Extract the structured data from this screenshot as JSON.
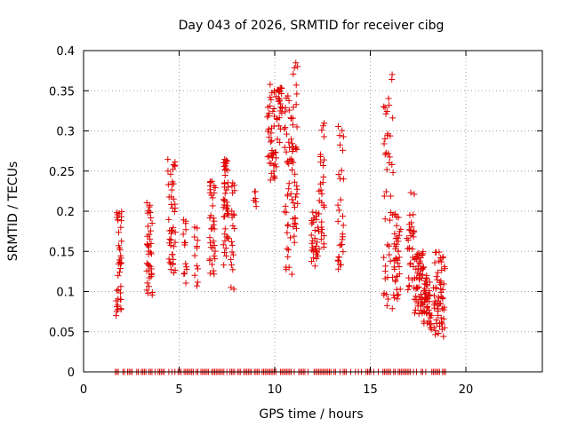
{
  "chart_data": {
    "type": "scatter",
    "title": "Day 043 of 2026, SRMTID for receiver cibg",
    "xlabel": "GPS time / hours",
    "ylabel": "SRMTID / TECUs",
    "xlim": [
      0,
      24
    ],
    "ylim": [
      0,
      0.4
    ],
    "x_ticks": [
      0,
      5,
      10,
      15,
      20
    ],
    "x_tick_labels": [
      "0",
      "5",
      "10",
      "15",
      "20"
    ],
    "y_ticks": [
      0,
      0.05,
      0.1,
      0.15,
      0.2,
      0.25,
      0.3,
      0.35,
      0.4
    ],
    "y_tick_labels": [
      "0",
      "0.05",
      "0.1",
      "0.15",
      "0.2",
      "0.25",
      "0.3",
      "0.35",
      "0.4"
    ],
    "grid": true,
    "marker": "+",
    "color": "#e00000",
    "clusters": [
      {
        "x_range": [
          1.7,
          2.0
        ],
        "y_range": [
          0.07,
          0.2
        ],
        "n": 40
      },
      {
        "x_range": [
          3.3,
          3.6
        ],
        "y_range": [
          0.095,
          0.215
        ],
        "n": 40
      },
      {
        "x_range": [
          4.4,
          4.8
        ],
        "y_range": [
          0.12,
          0.265
        ],
        "n": 45
      },
      {
        "x_range": [
          5.2,
          5.4
        ],
        "y_range": [
          0.11,
          0.19
        ],
        "n": 14
      },
      {
        "x_range": [
          5.8,
          6.0
        ],
        "y_range": [
          0.105,
          0.185
        ],
        "n": 12
      },
      {
        "x_range": [
          6.6,
          6.9
        ],
        "y_range": [
          0.11,
          0.24
        ],
        "n": 35
      },
      {
        "x_range": [
          7.3,
          7.6
        ],
        "y_range": [
          0.13,
          0.265
        ],
        "n": 45
      },
      {
        "x_range": [
          7.7,
          7.9
        ],
        "y_range": [
          0.09,
          0.24
        ],
        "n": 20
      },
      {
        "x_range": [
          8.9,
          9.1
        ],
        "y_range": [
          0.19,
          0.225
        ],
        "n": 6
      },
      {
        "x_range": [
          9.6,
          10.1
        ],
        "y_range": [
          0.23,
          0.36
        ],
        "n": 45
      },
      {
        "x_range": [
          10.1,
          10.4
        ],
        "y_range": [
          0.28,
          0.37
        ],
        "n": 25
      },
      {
        "x_range": [
          10.5,
          10.9
        ],
        "y_range": [
          0.12,
          0.35
        ],
        "n": 40
      },
      {
        "x_range": [
          10.9,
          11.2
        ],
        "y_range": [
          0.16,
          0.385
        ],
        "n": 40
      },
      {
        "x_range": [
          11.9,
          12.3
        ],
        "y_range": [
          0.13,
          0.2
        ],
        "n": 30
      },
      {
        "x_range": [
          12.3,
          12.6
        ],
        "y_range": [
          0.14,
          0.31
        ],
        "n": 30
      },
      {
        "x_range": [
          13.3,
          13.6
        ],
        "y_range": [
          0.125,
          0.31
        ],
        "n": 30
      },
      {
        "x_range": [
          15.7,
          16.2
        ],
        "y_range": [
          0.06,
          0.375
        ],
        "n": 45
      },
      {
        "x_range": [
          16.2,
          16.6
        ],
        "y_range": [
          0.09,
          0.2
        ],
        "n": 40
      },
      {
        "x_range": [
          16.9,
          17.3
        ],
        "y_range": [
          0.1,
          0.23
        ],
        "n": 30
      },
      {
        "x_range": [
          17.3,
          17.8
        ],
        "y_range": [
          0.07,
          0.15
        ],
        "n": 55
      },
      {
        "x_range": [
          17.8,
          18.2
        ],
        "y_range": [
          0.05,
          0.12
        ],
        "n": 45
      },
      {
        "x_range": [
          18.3,
          18.9
        ],
        "y_range": [
          0.04,
          0.15
        ],
        "n": 60
      }
    ],
    "zero_line_x_range": [
      1.5,
      19.0
    ]
  }
}
